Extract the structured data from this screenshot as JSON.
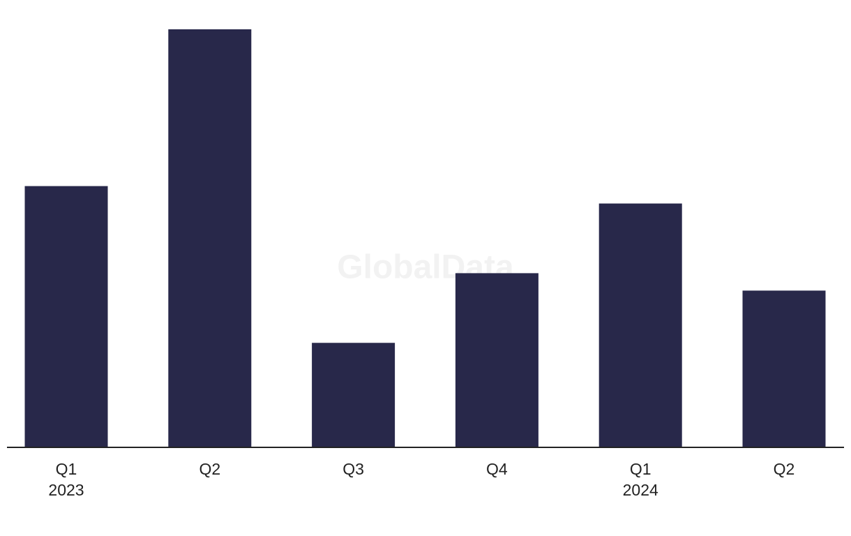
{
  "chart_data": {
    "type": "bar",
    "watermark": "GlobalData",
    "categories": [
      "Q1",
      "Q2",
      "Q3",
      "Q4",
      "Q1",
      "Q2"
    ],
    "years": [
      "2023",
      null,
      null,
      null,
      "2024",
      null
    ],
    "values": [
      15,
      24,
      6,
      10,
      14,
      9
    ],
    "color": "#28284a",
    "ylim": [
      0,
      24
    ]
  }
}
